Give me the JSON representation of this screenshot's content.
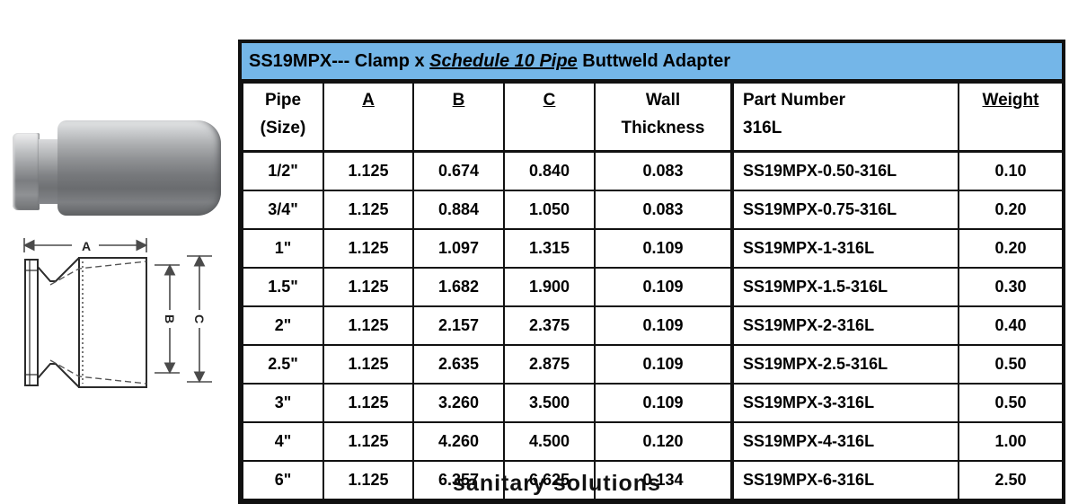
{
  "product": {
    "title_prefix": "SS19MPX--- Clamp x ",
    "title_emphasis": "Schedule 10 Pipe",
    "title_suffix": " Buttweld Adapter"
  },
  "colors": {
    "title_bar_bg": "#74B6E8",
    "table_border": "#111111"
  },
  "diagram": {
    "dim_a": "A",
    "dim_b": "B",
    "dim_c": "C"
  },
  "table": {
    "headers": [
      {
        "lines": [
          "Pipe",
          "(Size)"
        ],
        "underline": false,
        "align": "center"
      },
      {
        "lines": [
          "A"
        ],
        "underline": true,
        "align": "center"
      },
      {
        "lines": [
          "B"
        ],
        "underline": true,
        "align": "center"
      },
      {
        "lines": [
          "C"
        ],
        "underline": true,
        "align": "center"
      },
      {
        "lines": [
          "Wall",
          "Thickness"
        ],
        "underline": false,
        "align": "center"
      },
      {
        "lines": [
          "Part Number",
          "316L"
        ],
        "underline": false,
        "align": "left"
      },
      {
        "lines": [
          "Weight"
        ],
        "underline": true,
        "align": "center"
      }
    ],
    "rows": [
      [
        "1/2\"",
        "1.125",
        "0.674",
        "0.840",
        "0.083",
        "SS19MPX-0.50-316L",
        "0.10"
      ],
      [
        "3/4\"",
        "1.125",
        "0.884",
        "1.050",
        "0.083",
        "SS19MPX-0.75-316L",
        "0.20"
      ],
      [
        "1\"",
        "1.125",
        "1.097",
        "1.315",
        "0.109",
        "SS19MPX-1-316L",
        "0.20"
      ],
      [
        "1.5\"",
        "1.125",
        "1.682",
        "1.900",
        "0.109",
        "SS19MPX-1.5-316L",
        "0.30"
      ],
      [
        "2\"",
        "1.125",
        "2.157",
        "2.375",
        "0.109",
        "SS19MPX-2-316L",
        "0.40"
      ],
      [
        "2.5\"",
        "1.125",
        "2.635",
        "2.875",
        "0.109",
        "SS19MPX-2.5-316L",
        "0.50"
      ],
      [
        "3\"",
        "1.125",
        "3.260",
        "3.500",
        "0.109",
        "SS19MPX-3-316L",
        "0.50"
      ],
      [
        "4\"",
        "1.125",
        "4.260",
        "4.500",
        "0.120",
        "SS19MPX-4-316L",
        "1.00"
      ],
      [
        "6\"",
        "1.125",
        "6.357",
        "6.625",
        "0.134",
        "SS19MPX-6-316L",
        "2.50"
      ]
    ]
  },
  "footer": {
    "partial_text": "sanitary solutions"
  }
}
